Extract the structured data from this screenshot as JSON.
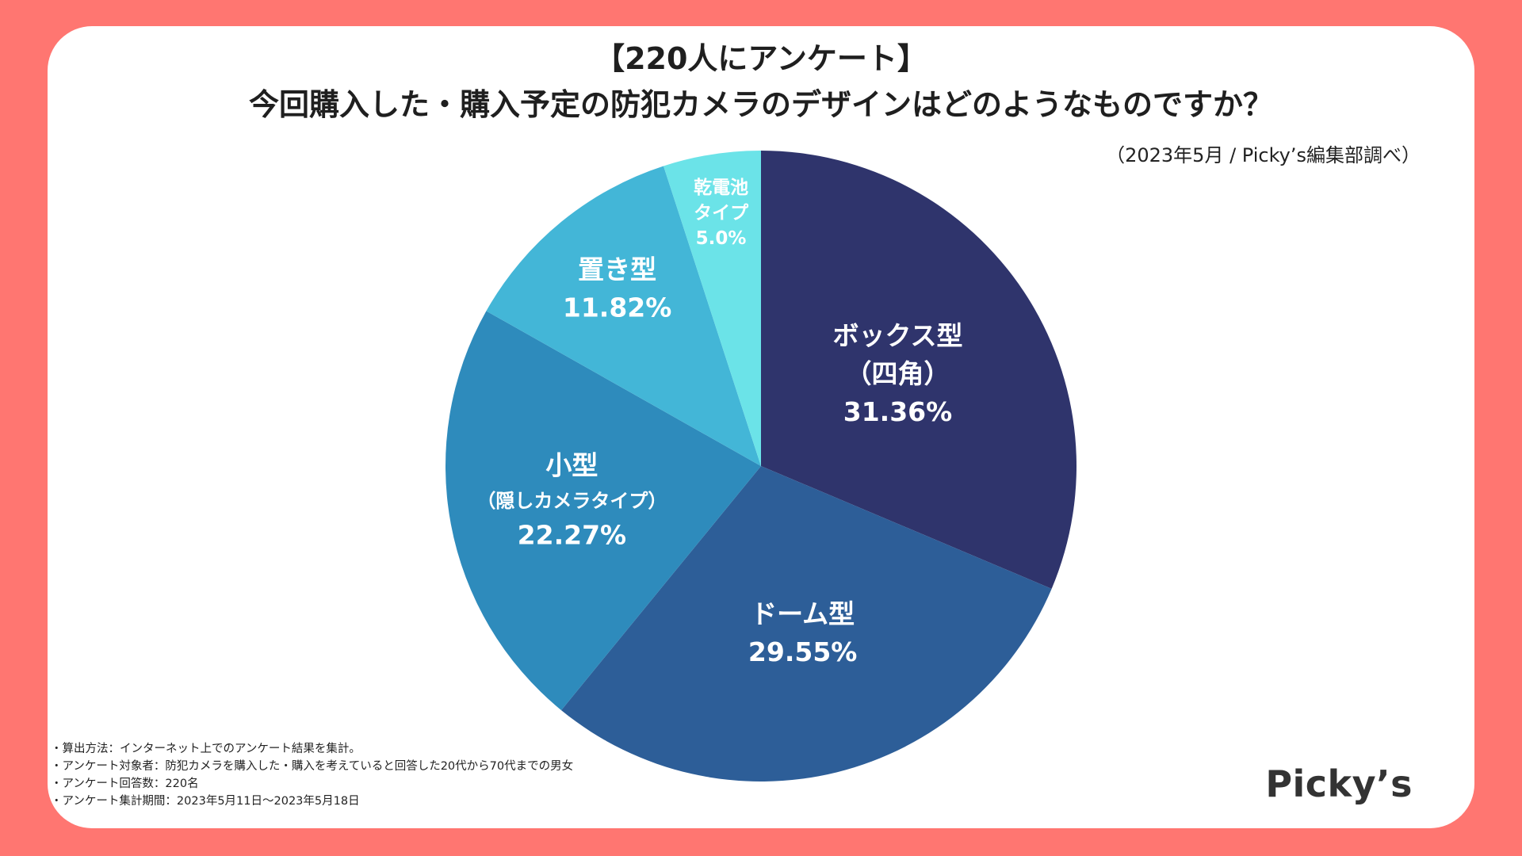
{
  "title": {
    "line1": "【220人にアンケート】",
    "line2": "今回購入した・購入予定の防犯カメラのデザインはどのようなものですか？"
  },
  "source_note": "（2023年5月 / Picky’s編集部調べ）",
  "footnotes": [
    "・算出方法：インターネット上でのアンケート結果を集計。",
    "・アンケート対象者：防犯カメラを購入した・購入を考えていると回答した20代から70代までの男女",
    "・アンケート回答数：220名",
    "・アンケート集計期間：2023年5月11日〜2023年5月18日"
  ],
  "brand": "Picky’s",
  "colors": {
    "background": "#FF7671",
    "card": "#FFFFFF",
    "label": "#FFFFFF"
  },
  "chart_data": {
    "type": "pie",
    "title": "今回購入した・購入予定の防犯カメラのデザインはどのようなものですか？",
    "start": "12 o'clock, clockwise",
    "slices": [
      {
        "label_lines": [
          "ボックス型",
          "（四角）"
        ],
        "value": 31.36,
        "value_label": "31.36%",
        "color": "#2F346C"
      },
      {
        "label_lines": [
          "ドーム型"
        ],
        "value": 29.55,
        "value_label": "29.55%",
        "color": "#2D5E98"
      },
      {
        "label_lines": [
          "小型",
          "（隠しカメラタイプ）"
        ],
        "value": 22.27,
        "value_label": "22.27%",
        "color": "#2E8BBC"
      },
      {
        "label_lines": [
          "置き型"
        ],
        "value": 11.82,
        "value_label": "11.82%",
        "color": "#43B6D7"
      },
      {
        "label_lines": [
          "乾電池",
          "タイプ"
        ],
        "value": 5.0,
        "value_label": "5.0%",
        "color": "#6BE3E8"
      }
    ]
  }
}
